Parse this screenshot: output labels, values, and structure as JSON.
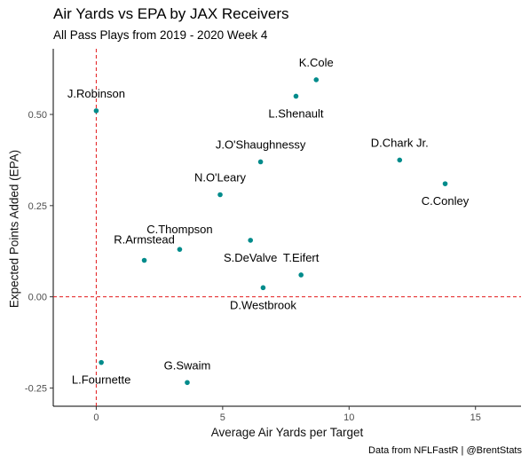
{
  "chart_data": {
    "type": "scatter",
    "title": "Air Yards vs EPA by JAX Receivers",
    "subtitle": "All Pass Plays from 2019 - 2020 Week 4",
    "xlabel": "Average Air Yards per Target",
    "ylabel": "Expected Points Added (EPA)",
    "caption": "Data from NFLFastR | @BrentStats",
    "xlim": [
      -1.7,
      16.8
    ],
    "ylim": [
      -0.3,
      0.68
    ],
    "xticks": [
      0,
      5,
      10,
      15
    ],
    "yticks": [
      -0.25,
      0.0,
      0.25,
      0.5
    ],
    "ytick_labels": [
      "-0.25",
      "0.00",
      "0.25",
      "0.50"
    ],
    "reference_lines": {
      "x": 0,
      "y": 0,
      "color": "#e31a1c",
      "style": "dashed"
    },
    "point_color": "#008b8b",
    "grid": false,
    "points": [
      {
        "label": "K.Cole",
        "x": 8.7,
        "y": 0.595,
        "label_pos": "above"
      },
      {
        "label": "L.Shenault",
        "x": 7.9,
        "y": 0.55,
        "label_pos": "below"
      },
      {
        "label": "J.Robinson",
        "x": 0.0,
        "y": 0.51,
        "label_pos": "above"
      },
      {
        "label": "J.O'Shaughnessy",
        "x": 6.5,
        "y": 0.37,
        "label_pos": "above"
      },
      {
        "label": "D.Chark Jr.",
        "x": 12.0,
        "y": 0.375,
        "label_pos": "above"
      },
      {
        "label": "C.Conley",
        "x": 13.8,
        "y": 0.31,
        "label_pos": "below"
      },
      {
        "label": "N.O'Leary",
        "x": 4.9,
        "y": 0.28,
        "label_pos": "above"
      },
      {
        "label": "C.Thompson",
        "x": 3.3,
        "y": 0.13,
        "label_pos": "right-above"
      },
      {
        "label": "S.DeValve",
        "x": 6.1,
        "y": 0.155,
        "label_pos": "below"
      },
      {
        "label": "R.Armstead",
        "x": 1.9,
        "y": 0.1,
        "label_pos": "left-above"
      },
      {
        "label": "T.Eifert",
        "x": 8.1,
        "y": 0.06,
        "label_pos": "above"
      },
      {
        "label": "D.Westbrook",
        "x": 6.6,
        "y": 0.025,
        "label_pos": "below"
      },
      {
        "label": "L.Fournette",
        "x": 0.2,
        "y": -0.18,
        "label_pos": "below"
      },
      {
        "label": "G.Swaim",
        "x": 3.6,
        "y": -0.235,
        "label_pos": "above"
      }
    ]
  }
}
